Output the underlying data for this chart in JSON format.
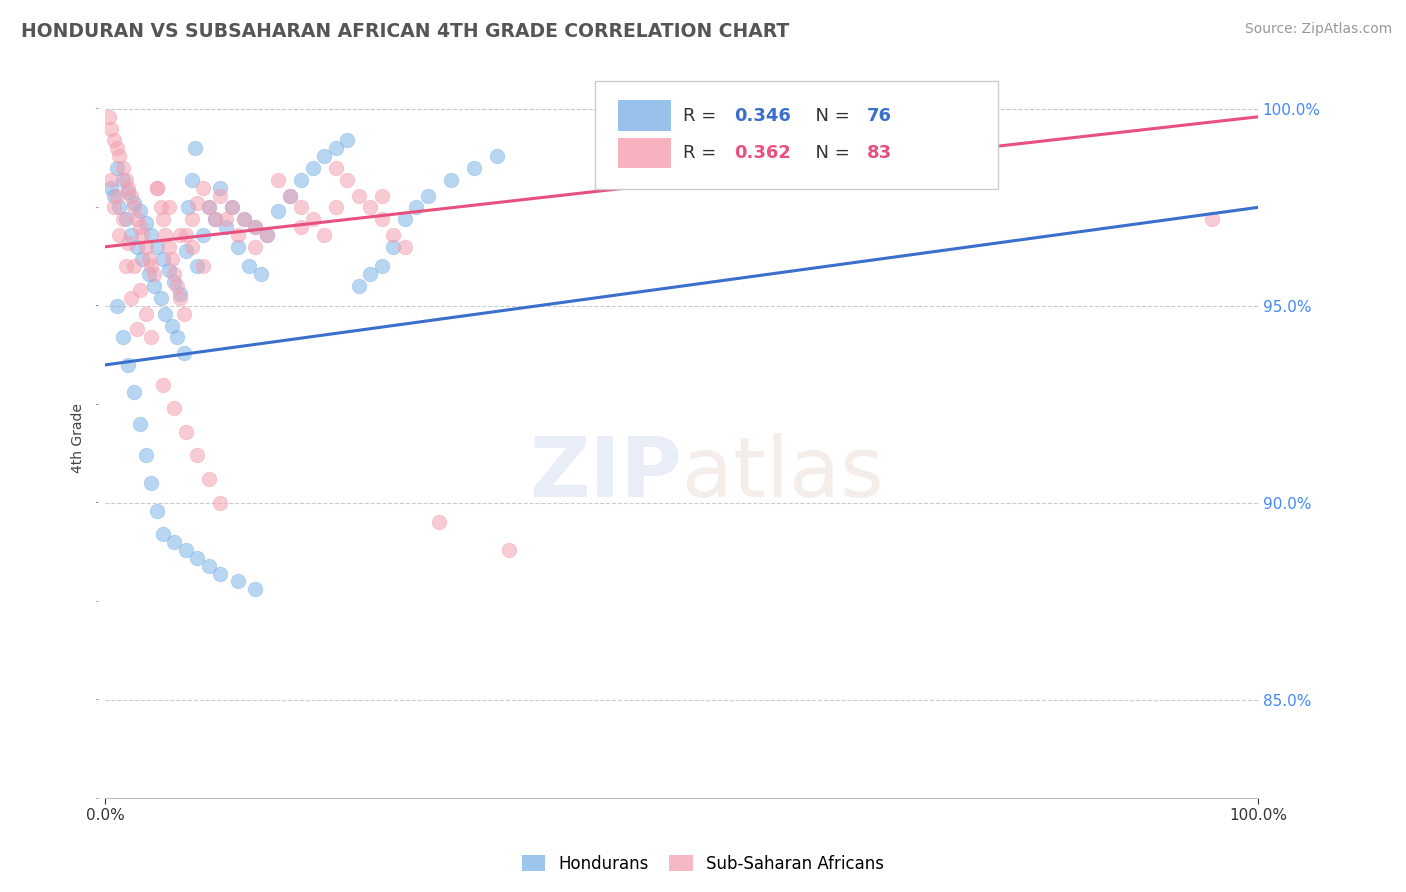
{
  "title": "HONDURAN VS SUBSAHARAN AFRICAN 4TH GRADE CORRELATION CHART",
  "source": "Source: ZipAtlas.com",
  "ylabel": "4th Grade",
  "ylabel_right_values": [
    1.0,
    0.95,
    0.9,
    0.85
  ],
  "xmin": 0.0,
  "xmax": 1.0,
  "ymin": 0.825,
  "ymax": 1.008,
  "blue_R": 0.346,
  "blue_N": 76,
  "pink_R": 0.362,
  "pink_N": 83,
  "blue_color": "#7EB3E8",
  "pink_color": "#F4A0B0",
  "blue_line_color": "#3B6FCC",
  "pink_line_color": "#E85080",
  "legend_label_blue": "Hondurans",
  "legend_label_pink": "Sub-Saharan Africans",
  "blue_x": [
    0.005,
    0.008,
    0.01,
    0.012,
    0.015,
    0.018,
    0.02,
    0.022,
    0.025,
    0.028,
    0.03,
    0.032,
    0.035,
    0.038,
    0.04,
    0.042,
    0.045,
    0.048,
    0.05,
    0.052,
    0.055,
    0.058,
    0.06,
    0.062,
    0.065,
    0.068,
    0.07,
    0.072,
    0.075,
    0.078,
    0.08,
    0.085,
    0.09,
    0.095,
    0.1,
    0.105,
    0.11,
    0.115,
    0.12,
    0.125,
    0.13,
    0.135,
    0.14,
    0.15,
    0.16,
    0.17,
    0.18,
    0.19,
    0.2,
    0.21,
    0.22,
    0.23,
    0.24,
    0.25,
    0.26,
    0.27,
    0.28,
    0.3,
    0.32,
    0.34,
    0.01,
    0.015,
    0.02,
    0.025,
    0.03,
    0.035,
    0.04,
    0.045,
    0.05,
    0.06,
    0.07,
    0.08,
    0.09,
    0.1,
    0.115,
    0.13
  ],
  "blue_y": [
    0.98,
    0.978,
    0.985,
    0.975,
    0.982,
    0.972,
    0.979,
    0.968,
    0.976,
    0.965,
    0.974,
    0.962,
    0.971,
    0.958,
    0.968,
    0.955,
    0.965,
    0.952,
    0.962,
    0.948,
    0.959,
    0.945,
    0.956,
    0.942,
    0.953,
    0.938,
    0.964,
    0.975,
    0.982,
    0.99,
    0.96,
    0.968,
    0.975,
    0.972,
    0.98,
    0.97,
    0.975,
    0.965,
    0.972,
    0.96,
    0.97,
    0.958,
    0.968,
    0.974,
    0.978,
    0.982,
    0.985,
    0.988,
    0.99,
    0.992,
    0.955,
    0.958,
    0.96,
    0.965,
    0.972,
    0.975,
    0.978,
    0.982,
    0.985,
    0.988,
    0.95,
    0.942,
    0.935,
    0.928,
    0.92,
    0.912,
    0.905,
    0.898,
    0.892,
    0.89,
    0.888,
    0.886,
    0.884,
    0.882,
    0.88,
    0.878
  ],
  "pink_x": [
    0.003,
    0.005,
    0.008,
    0.01,
    0.012,
    0.015,
    0.018,
    0.02,
    0.022,
    0.025,
    0.028,
    0.03,
    0.032,
    0.035,
    0.038,
    0.04,
    0.042,
    0.045,
    0.048,
    0.05,
    0.052,
    0.055,
    0.058,
    0.06,
    0.062,
    0.065,
    0.068,
    0.07,
    0.075,
    0.08,
    0.085,
    0.09,
    0.095,
    0.1,
    0.11,
    0.12,
    0.13,
    0.14,
    0.15,
    0.16,
    0.17,
    0.18,
    0.19,
    0.2,
    0.21,
    0.22,
    0.23,
    0.24,
    0.25,
    0.26,
    0.01,
    0.015,
    0.02,
    0.025,
    0.03,
    0.035,
    0.04,
    0.05,
    0.06,
    0.07,
    0.08,
    0.09,
    0.1,
    0.005,
    0.008,
    0.012,
    0.018,
    0.022,
    0.028,
    0.045,
    0.055,
    0.065,
    0.075,
    0.085,
    0.105,
    0.115,
    0.13,
    0.17,
    0.2,
    0.24,
    0.96,
    0.29,
    0.35
  ],
  "pink_y": [
    0.998,
    0.995,
    0.992,
    0.99,
    0.988,
    0.985,
    0.982,
    0.98,
    0.978,
    0.975,
    0.972,
    0.97,
    0.968,
    0.965,
    0.962,
    0.96,
    0.958,
    0.98,
    0.975,
    0.972,
    0.968,
    0.965,
    0.962,
    0.958,
    0.955,
    0.952,
    0.948,
    0.968,
    0.972,
    0.976,
    0.98,
    0.975,
    0.972,
    0.978,
    0.975,
    0.972,
    0.97,
    0.968,
    0.982,
    0.978,
    0.975,
    0.972,
    0.968,
    0.985,
    0.982,
    0.978,
    0.975,
    0.972,
    0.968,
    0.965,
    0.978,
    0.972,
    0.966,
    0.96,
    0.954,
    0.948,
    0.942,
    0.93,
    0.924,
    0.918,
    0.912,
    0.906,
    0.9,
    0.982,
    0.975,
    0.968,
    0.96,
    0.952,
    0.944,
    0.98,
    0.975,
    0.968,
    0.965,
    0.96,
    0.972,
    0.968,
    0.965,
    0.97,
    0.975,
    0.978,
    0.972,
    0.895,
    0.888
  ]
}
